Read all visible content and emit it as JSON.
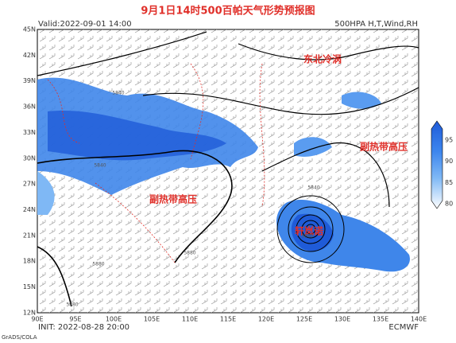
{
  "header": {
    "title": "9月1日14时500百帕天气形势预报图",
    "valid": "Valid:2022-09-01 14:00",
    "product": "500HPA H,T,Wind,RH"
  },
  "map": {
    "lat_labels": [
      "45N",
      "42N",
      "39N",
      "36N",
      "33N",
      "30N",
      "27N",
      "24N",
      "21N",
      "18N",
      "15N",
      "12N"
    ],
    "lon_labels": [
      "90E",
      "95E",
      "100E",
      "105E",
      "110E",
      "115E",
      "120E",
      "125E",
      "130E",
      "135E",
      "140E"
    ],
    "annotations": [
      "东北冷涡",
      "副热带高压",
      "副热带高压",
      "轩岚诺"
    ],
    "contour_labels": [
      "5840",
      "5840",
      "5880",
      "5880",
      "5880",
      "5840",
      "5880"
    ]
  },
  "colorbar": {
    "labels": [
      95,
      90,
      85,
      80
    ]
  },
  "footer": {
    "init": "INIT: 2022-08-28 20:00",
    "source": "ECMWF",
    "software": "GrADS/COLA"
  }
}
